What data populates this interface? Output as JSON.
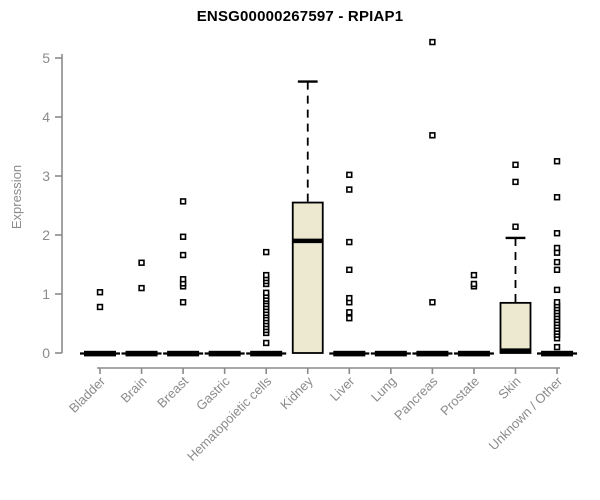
{
  "header": {
    "title": "ENSG00000267597 - RPIAP1"
  },
  "chart_data": {
    "type": "boxplot",
    "title": "ENSG00000267597 - RPIAP1",
    "xlabel": "",
    "ylabel": "Expression",
    "ylim": [
      0,
      5
    ],
    "yticks": [
      0,
      1,
      2,
      3,
      4,
      5
    ],
    "grid": false,
    "legend": "none",
    "categories": [
      "Bladder",
      "Brain",
      "Breast",
      "Gastric",
      "Hematopoietic cells",
      "Kidney",
      "Liver",
      "Lung",
      "Pancreas",
      "Prostate",
      "Skin",
      "Unknown / Other"
    ],
    "series": [
      {
        "category": "Bladder",
        "whisker_low": 0,
        "q1": 0,
        "median": 0,
        "q3": 0,
        "whisker_high": 0,
        "outliers": [
          0.78,
          1.03
        ]
      },
      {
        "category": "Brain",
        "whisker_low": 0,
        "q1": 0,
        "median": 0,
        "q3": 0,
        "whisker_high": 0,
        "outliers": [
          1.1,
          1.53
        ]
      },
      {
        "category": "Breast",
        "whisker_low": 0,
        "q1": 0,
        "median": 0,
        "q3": 0,
        "whisker_high": 0,
        "outliers": [
          0.86,
          1.13,
          1.18,
          1.25,
          1.66,
          1.97,
          2.57
        ]
      },
      {
        "category": "Gastric",
        "whisker_low": 0,
        "q1": 0,
        "median": 0,
        "q3": 0,
        "whisker_high": 0,
        "outliers": []
      },
      {
        "category": "Hematopoietic cells",
        "whisker_low": 0,
        "q1": 0,
        "median": 0,
        "q3": 0,
        "whisker_high": 0,
        "outliers": [
          0.17,
          0.34,
          0.39,
          0.44,
          0.49,
          0.54,
          0.59,
          0.64,
          0.68,
          0.73,
          0.78,
          0.83,
          0.88,
          0.92,
          0.97,
          1.02,
          1.17,
          1.22,
          1.27,
          1.32,
          1.71
        ]
      },
      {
        "category": "Kidney",
        "whisker_low": 0,
        "q1": 0,
        "median": 1.9,
        "q3": 2.55,
        "whisker_high": 4.6,
        "outliers": []
      },
      {
        "category": "Liver",
        "whisker_low": 0,
        "q1": 0,
        "median": 0,
        "q3": 0,
        "whisker_high": 0,
        "outliers": [
          0.59,
          0.69,
          0.86,
          0.93,
          1.41,
          1.88,
          2.77,
          3.02
        ]
      },
      {
        "category": "Lung",
        "whisker_low": 0,
        "q1": 0,
        "median": 0,
        "q3": 0,
        "whisker_high": 0,
        "outliers": []
      },
      {
        "category": "Pancreas",
        "whisker_low": 0,
        "q1": 0,
        "median": 0,
        "q3": 0,
        "whisker_high": 0,
        "outliers": [
          0.86,
          3.69,
          5.27
        ]
      },
      {
        "category": "Prostate",
        "whisker_low": 0,
        "q1": 0,
        "median": 0,
        "q3": 0,
        "whisker_high": 0,
        "outliers": [
          1.13,
          1.17,
          1.32
        ]
      },
      {
        "category": "Skin",
        "whisker_low": 0,
        "q1": 0,
        "median": 0.04,
        "q3": 0.85,
        "whisker_high": 1.95,
        "outliers": [
          2.14,
          2.9,
          3.19
        ]
      },
      {
        "category": "Unknown / Other",
        "whisker_low": 0,
        "q1": 0,
        "median": 0,
        "q3": 0,
        "whisker_high": 0,
        "outliers": [
          0.1,
          0.25,
          0.31,
          0.36,
          0.41,
          0.46,
          0.51,
          0.56,
          0.61,
          0.66,
          0.71,
          0.76,
          0.81,
          0.86,
          1.07,
          1.41,
          1.54,
          1.7,
          1.78,
          2.03,
          2.64,
          3.25
        ]
      }
    ],
    "colors": {
      "box_fill": "#ede9d0",
      "box_stroke": "#000000",
      "median": "#000000",
      "whisker": "#000000",
      "outlier_stroke": "#000000",
      "outlier_fill": "#ffffff",
      "axis": "#8b8b8b",
      "tick_label": "#8b8b8b",
      "title": "#000000",
      "background": "#ffffff"
    }
  }
}
